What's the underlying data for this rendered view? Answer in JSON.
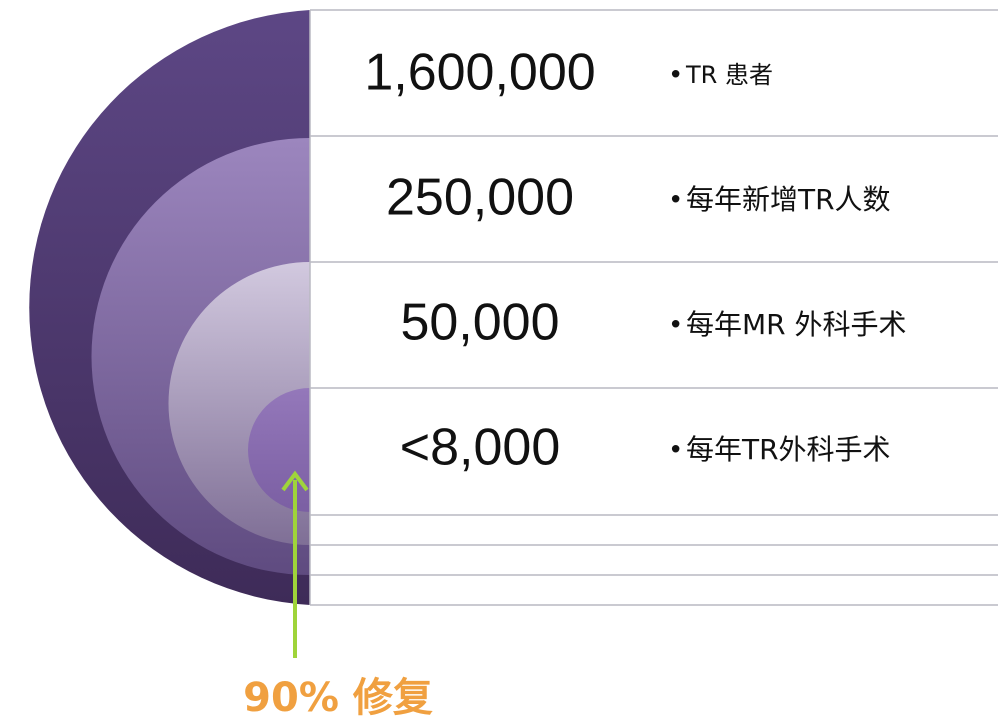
{
  "rows": [
    {
      "value": "1,600,000",
      "label": "TR 患者"
    },
    {
      "value": "250,000",
      "label": "每年新增TR人数"
    },
    {
      "value": "50,000",
      "label": "每年MR 外科手术"
    },
    {
      "value": "<8,000",
      "label": "每年TR外科手术"
    }
  ],
  "annotation": "90% 修复"
}
